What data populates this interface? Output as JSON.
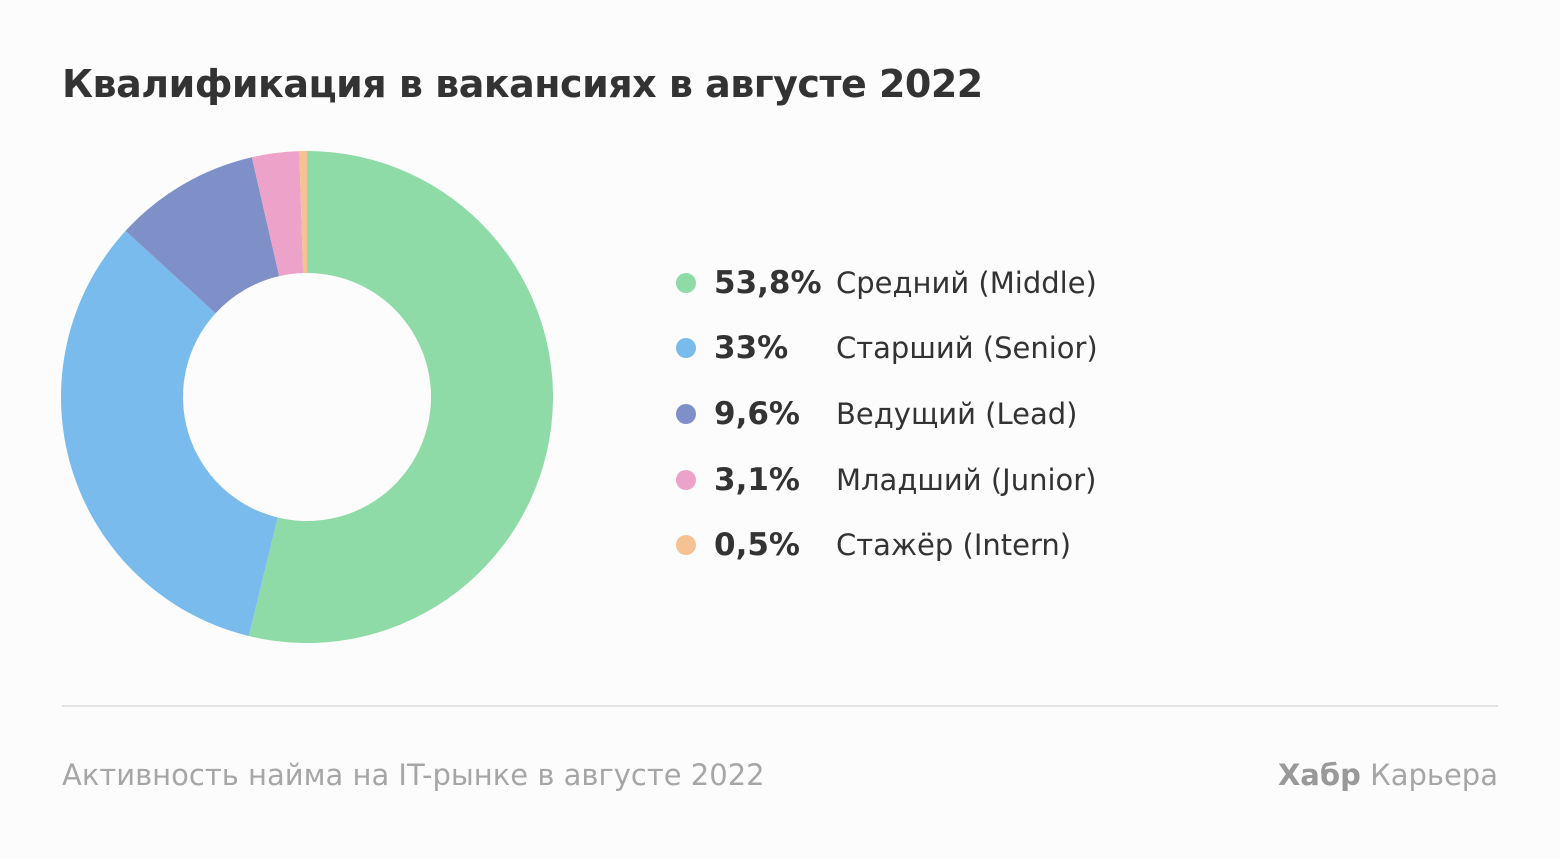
{
  "chart_data": {
    "type": "pie",
    "title": "Квалификация в вакансиях в августе 2022",
    "slices": [
      {
        "value": 53.8,
        "value_label": "53,8%",
        "label": "Средний (Middle)",
        "color": "#8fdba7"
      },
      {
        "value": 33,
        "value_label": "33%",
        "label": "Старший (Senior)",
        "color": "#79bbec"
      },
      {
        "value": 9.6,
        "value_label": "9,6%",
        "label": "Ведущий (Lead)",
        "color": "#7f8fc8"
      },
      {
        "value": 3.1,
        "value_label": "3,1%",
        "label": "Младший (Junior)",
        "color": "#eda2c9"
      },
      {
        "value": 0.5,
        "value_label": "0,5%",
        "label": "Стажёр (Intern)",
        "color": "#f6c193"
      }
    ],
    "legend_position": "right"
  },
  "footer": {
    "caption": "Активность найма на IT-рынке в августе 2022",
    "brand_bold": "Хабр",
    "brand_rest": "Карьера"
  }
}
